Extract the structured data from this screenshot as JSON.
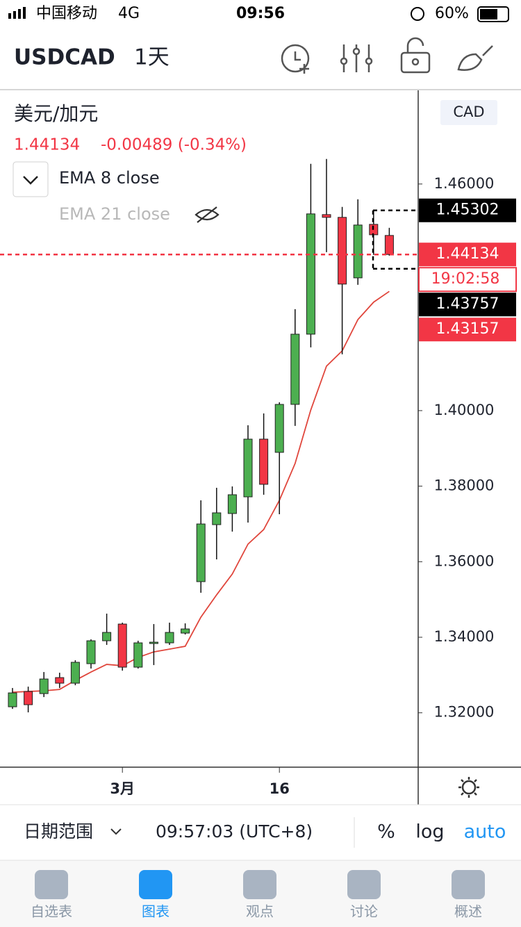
{
  "status_bar": {
    "carrier": "中国移动",
    "network": "4G",
    "time": "09:56",
    "battery": "60%"
  },
  "chart_data": {
    "type": "candlestick",
    "symbol": "USDCAD",
    "interval": "1天",
    "pair_name": "美元/加元",
    "quote": {
      "last": "1.44134",
      "change": "-0.00489 (-0.34%)"
    },
    "currency": "CAD",
    "categories": [
      null,
      null,
      null,
      null,
      null,
      null,
      null,
      "3月",
      null,
      null,
      null,
      null,
      null,
      null,
      null,
      null,
      null,
      "16",
      null,
      null,
      null,
      null,
      null,
      null,
      null
    ],
    "series": [
      {
        "name": "USDCAD",
        "up_color": "#4caf50",
        "down_color": "#f23645",
        "open": [
          1.32159,
          1.32564,
          1.32508,
          1.32932,
          1.32784,
          1.333,
          1.33907,
          1.34349,
          1.33208,
          1.33834,
          1.33852,
          1.3411,
          1.35472,
          1.36981,
          1.37276,
          1.37717,
          1.39245,
          1.38895,
          1.40165,
          1.42024,
          1.4519,
          1.45117,
          1.43515,
          1.44932,
          1.44638
        ],
        "high": [
          1.32656,
          1.32692,
          1.33079,
          1.33061,
          1.33392,
          1.33944,
          1.34625,
          1.34386,
          1.33907,
          1.34349,
          1.34386,
          1.34367,
          1.37625,
          1.37957,
          1.37993,
          1.39613,
          1.39926,
          1.40221,
          1.42687,
          1.46534,
          1.46663,
          1.45393,
          1.45595,
          1.45319,
          1.4484
        ],
        "low": [
          1.32103,
          1.32011,
          1.32416,
          1.32656,
          1.32729,
          1.33171,
          1.33797,
          1.33116,
          1.33171,
          1.33263,
          1.33797,
          1.34073,
          1.35177,
          1.36061,
          1.36797,
          1.37036,
          1.37773,
          1.37257,
          1.39595,
          1.41675,
          1.44196,
          1.41491,
          1.43331,
          1.44123,
          1.44104
        ],
        "close": [
          1.32527,
          1.32214,
          1.32895,
          1.32784,
          1.33337,
          1.33907,
          1.34128,
          1.33208,
          1.33852,
          1.3387,
          1.34128,
          1.3422,
          1.36999,
          1.37294,
          1.37773,
          1.39245,
          1.38049,
          1.40165,
          1.42024,
          1.45209,
          1.45117,
          1.4335,
          1.44914,
          1.44656,
          1.44134
        ]
      }
    ],
    "indicators": [
      {
        "name": "EMA 8 close",
        "visible": true,
        "color": "#e0463c",
        "values": [
          1.32545,
          1.32564,
          1.32582,
          1.32619,
          1.32858,
          1.33079,
          1.33282,
          1.33245,
          1.33466,
          1.33613,
          1.33686,
          1.3376,
          1.34533,
          1.35122,
          1.35674,
          1.36466,
          1.36852,
          1.37625,
          1.38601,
          1.40018,
          1.41178,
          1.41583,
          1.42411,
          1.42871,
          1.43157
        ]
      },
      {
        "name": "EMA 21 close",
        "visible": false
      }
    ],
    "price_labels": [
      {
        "value": 1.45302,
        "color": "#000000",
        "dashed": true
      },
      {
        "value": 1.44134,
        "color": "#f23645",
        "dashed": true
      },
      {
        "value": 1.43757,
        "color": "#000000",
        "dashed": true
      },
      {
        "value": 1.43157,
        "color": "#f23645",
        "dashed": false
      }
    ],
    "countdown": "19:02:58",
    "ylim": [
      1.3056,
      1.4848
    ],
    "yticks": [
      {
        "value": 1.32,
        "label": "1.32000"
      },
      {
        "value": 1.34,
        "label": "1.34000"
      },
      {
        "value": 1.36,
        "label": "1.36000"
      },
      {
        "value": 1.38,
        "label": "1.38000"
      },
      {
        "value": 1.4,
        "label": "1.40000"
      },
      {
        "value": 1.46,
        "label": "1.46000"
      }
    ]
  },
  "toolbar": {
    "date_range": "日期范围",
    "clock": "09:57:03 (UTC+8)",
    "percent": "%",
    "log": "log",
    "auto": "auto"
  },
  "tabs": [
    "自选表",
    "图表",
    "观点",
    "讨论",
    "概述"
  ]
}
